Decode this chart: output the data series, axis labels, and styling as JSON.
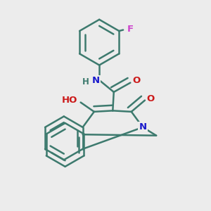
{
  "bg_color": "#ececec",
  "bond_color": "#3d7a6e",
  "bond_width": 1.8,
  "atom_colors": {
    "N": "#1a1acc",
    "O": "#cc1a1a",
    "F": "#cc44cc",
    "C": "#3d7a6e"
  },
  "font_size": 9.5
}
